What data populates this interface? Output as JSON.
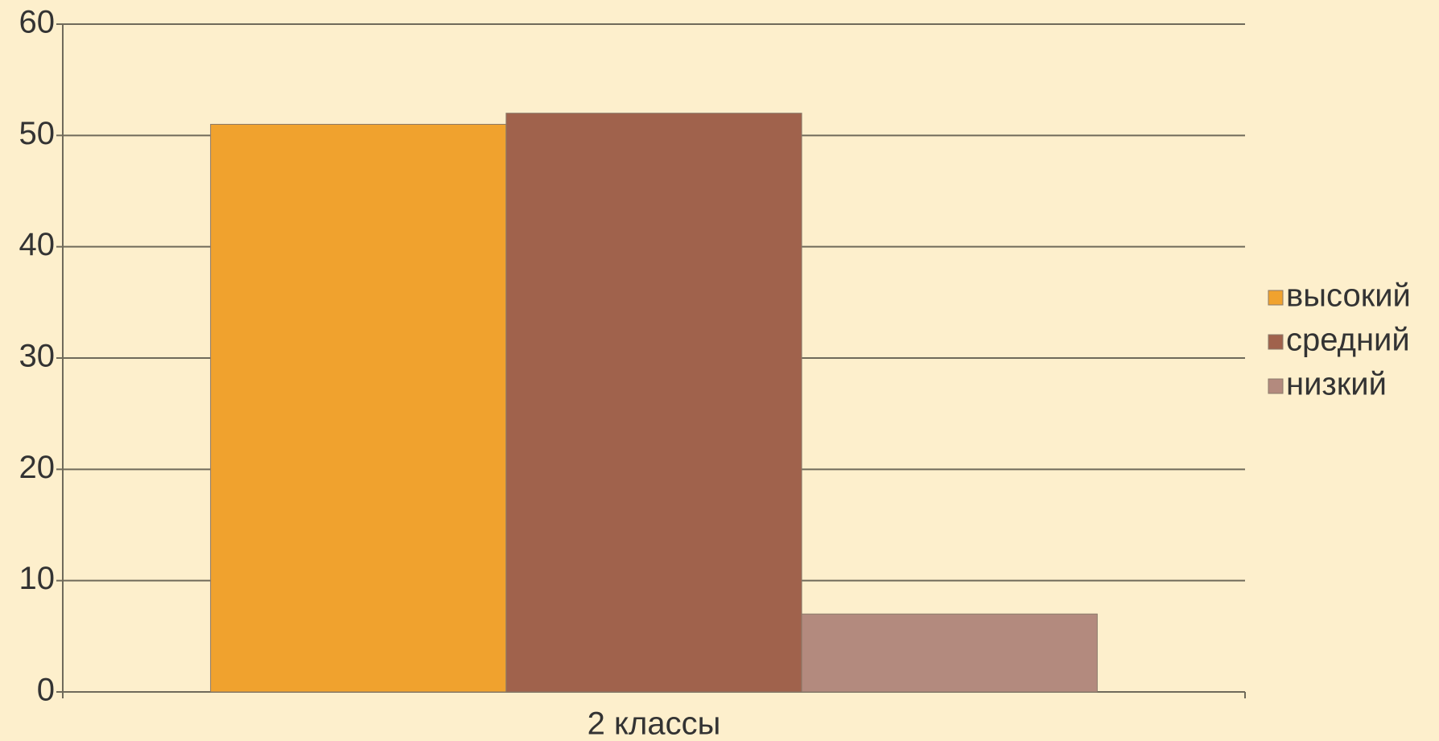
{
  "chart_data": {
    "type": "bar",
    "categories": [
      "2 классы"
    ],
    "series": [
      {
        "name": "высокий",
        "color": "#f0a22e",
        "values": [
          51
        ]
      },
      {
        "name": "средний",
        "color": "#a0624c",
        "values": [
          52
        ]
      },
      {
        "name": "низкий",
        "color": "#b38a7e",
        "values": [
          7
        ]
      }
    ],
    "ylim": [
      0,
      60
    ],
    "yticks": [
      0,
      10,
      20,
      30,
      40,
      50,
      60
    ],
    "grid": true,
    "legend": "right"
  }
}
